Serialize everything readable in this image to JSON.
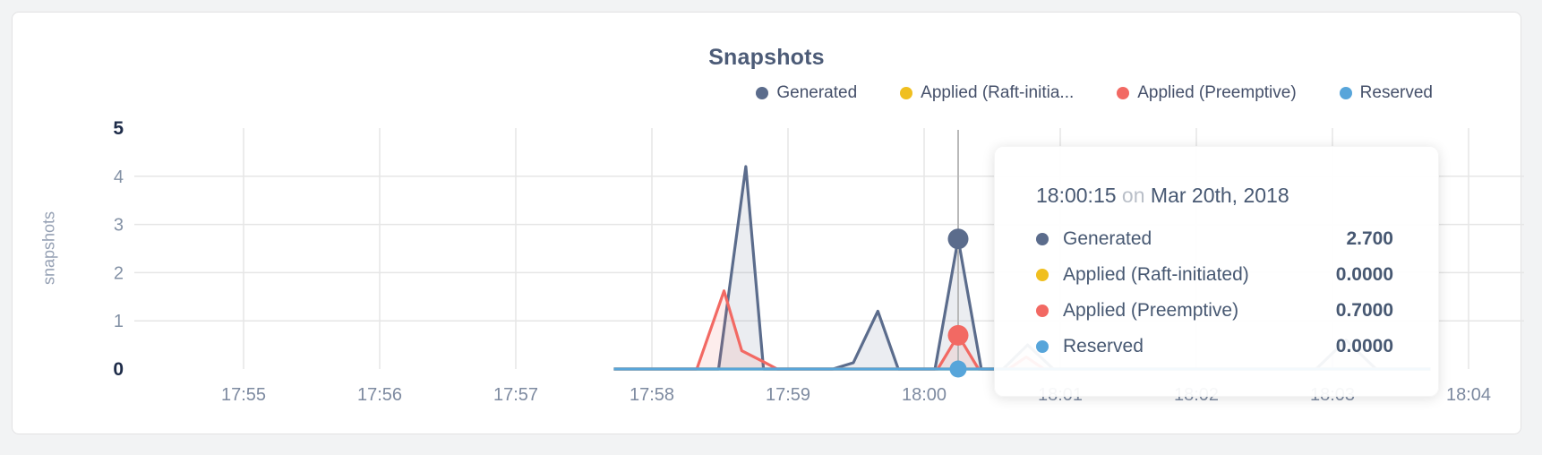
{
  "page": {
    "background": "#f2f3f4"
  },
  "chart_data": {
    "type": "area",
    "title": "Snapshots",
    "ylabel": "snapshots",
    "xlabel": "",
    "ylim": [
      0,
      5
    ],
    "yticks": [
      0,
      1,
      2,
      3,
      4,
      5
    ],
    "emphasized_yticks": [
      0,
      5
    ],
    "x_tick_labels": [
      "17:55",
      "17:56",
      "17:57",
      "17:58",
      "17:59",
      "18:00",
      "18:01",
      "18:02",
      "18:03",
      "18:04"
    ],
    "x_unit": "minutes after 17:55",
    "grid": true,
    "legend_position": "top-right",
    "hover": {
      "t": 5.25,
      "time": "18:00:15",
      "date": "Mar 20th, 2018"
    },
    "series": [
      {
        "name": "Generated",
        "color": "#5b6c8c",
        "hover_value": 2.7,
        "hover_dot": true,
        "hover_dot_radius": 11.5,
        "points": [
          [
            2.72,
            0
          ],
          [
            3.49,
            0
          ],
          [
            3.69,
            4.2
          ],
          [
            3.82,
            0
          ],
          [
            4.33,
            0
          ],
          [
            4.48,
            0.13
          ],
          [
            4.66,
            1.2
          ],
          [
            4.81,
            0
          ],
          [
            5.08,
            0
          ],
          [
            5.25,
            2.7
          ],
          [
            5.42,
            0
          ],
          [
            5.58,
            0
          ],
          [
            5.76,
            0.5
          ],
          [
            5.95,
            0
          ],
          [
            7.88,
            0
          ],
          [
            8.1,
            0.6
          ],
          [
            8.32,
            0
          ],
          [
            8.72,
            0
          ]
        ]
      },
      {
        "name": "Applied (Raft-initiated)",
        "color": "#f0bf1f",
        "hover_value": 0,
        "hover_dot": false,
        "hover_dot_radius": 0,
        "points": [
          [
            2.72,
            0
          ],
          [
            8.72,
            0
          ]
        ]
      },
      {
        "name": "Applied (Preemptive)",
        "color": "#f26963",
        "hover_value": 0.7,
        "hover_dot": true,
        "hover_dot_radius": 11.5,
        "points": [
          [
            2.72,
            0
          ],
          [
            3.33,
            0
          ],
          [
            3.53,
            1.62
          ],
          [
            3.66,
            0.38
          ],
          [
            3.82,
            0.15
          ],
          [
            3.92,
            0
          ],
          [
            5.1,
            0
          ],
          [
            5.25,
            0.7
          ],
          [
            5.4,
            0
          ],
          [
            5.62,
            0
          ],
          [
            5.75,
            0.25
          ],
          [
            5.88,
            0
          ],
          [
            8.72,
            0
          ]
        ]
      },
      {
        "name": "Reserved",
        "color": "#57a5da",
        "hover_value": 0,
        "hover_dot": true,
        "hover_dot_radius": 9.5,
        "points": [
          [
            2.72,
            0
          ],
          [
            8.72,
            0
          ]
        ]
      }
    ]
  },
  "legend": {
    "items": [
      {
        "label": "Generated",
        "color": "#5b6c8c"
      },
      {
        "label": "Applied (Raft-initia...",
        "color": "#f0bf1f"
      },
      {
        "label": "Applied (Preemptive)",
        "color": "#f26963"
      },
      {
        "label": "Reserved",
        "color": "#57a5da"
      }
    ]
  },
  "tooltip": {
    "time": "18:00:15",
    "connector": "on",
    "date": "Mar 20th, 2018",
    "rows": [
      {
        "label": "Generated",
        "value": "2.700",
        "color": "#5b6c8c"
      },
      {
        "label": "Applied (Raft-initiated)",
        "value": "0.0000",
        "color": "#f0bf1f"
      },
      {
        "label": "Applied (Preemptive)",
        "value": "0.7000",
        "color": "#f26963"
      },
      {
        "label": "Reserved",
        "value": "0.0000",
        "color": "#57a5da"
      }
    ]
  },
  "colors": {
    "title": "#4c5b77",
    "grid": "#e6e6e6",
    "hover_line": "#b9b9b9",
    "y_tick": "#8391a5",
    "y_tick_emphasis": "#1e2c49",
    "x_tick": "#7d8aa0",
    "card_background": "#ffffff",
    "card_border": "#e2e2e3"
  }
}
